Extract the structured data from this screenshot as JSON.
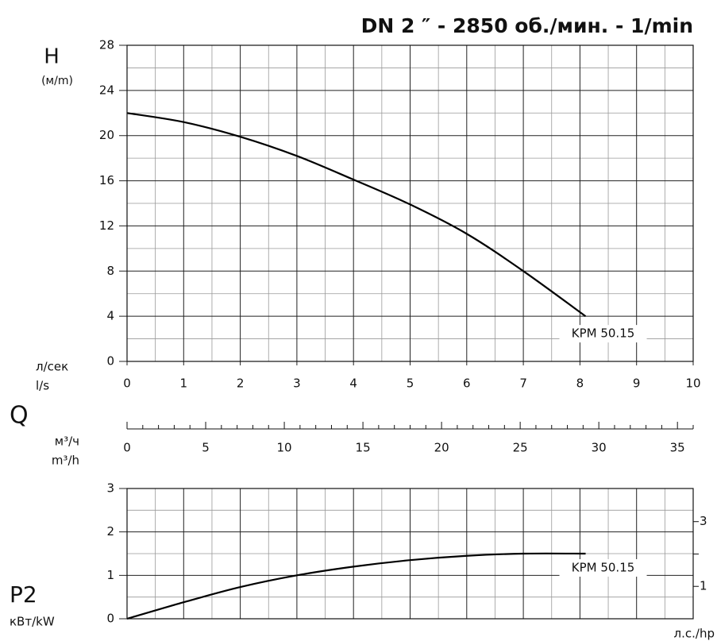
{
  "chart_data": [
    {
      "type": "line",
      "title": "DN 2 ″ - 2850 об./мин. - 1/min",
      "ylabel": "H",
      "yunit": "(м/m)",
      "xunit": [
        "л/сек",
        "l/s"
      ],
      "x": [
        0,
        1,
        2,
        3,
        4,
        5,
        6,
        7,
        8.1
      ],
      "series": [
        {
          "name": "KPM 50.15",
          "color": "#000000",
          "values": [
            22,
            21.2,
            19.9,
            18.2,
            16.1,
            13.9,
            11.3,
            8.0,
            4.0
          ]
        }
      ],
      "xlim": [
        0,
        10
      ],
      "xticks": [
        0,
        1,
        2,
        3,
        4,
        5,
        6,
        7,
        8,
        9,
        10
      ],
      "xminor": [
        0.5,
        1.5,
        2.5,
        3.5,
        4.5,
        5.5,
        6.5,
        7.5,
        8.5,
        9.5
      ],
      "ylim": [
        0,
        28
      ],
      "yticks": [
        0,
        4,
        8,
        12,
        16,
        20,
        24,
        28
      ],
      "yminor": [
        2,
        6,
        10,
        14,
        18,
        22,
        26
      ],
      "grid": true
    },
    {
      "type": "axis",
      "xlabel": "Q",
      "xunit": [
        "м³/ч",
        "m³/h"
      ],
      "xlim": [
        0,
        36
      ],
      "xticks": [
        0,
        5,
        10,
        15,
        20,
        25,
        30,
        35
      ],
      "xminor": [
        1,
        2,
        3,
        4,
        6,
        7,
        8,
        9,
        11,
        12,
        13,
        14,
        16,
        17,
        18,
        19,
        21,
        22,
        23,
        24,
        26,
        27,
        28,
        29,
        31,
        32,
        33,
        34,
        36
      ]
    },
    {
      "type": "line",
      "ylabel": "P2",
      "yunit": "кВт/kW",
      "y2unit": "л.с./hp",
      "x": [
        0,
        1,
        2,
        3,
        4,
        5,
        6,
        7,
        8.1
      ],
      "series": [
        {
          "name": "KPM 50.15",
          "color": "#000000",
          "values": [
            0,
            0.38,
            0.73,
            1.0,
            1.2,
            1.35,
            1.45,
            1.5,
            1.5
          ]
        }
      ],
      "xlim": [
        0,
        10
      ],
      "xticks": [
        0,
        1,
        2,
        3,
        4,
        5,
        6,
        7,
        8,
        9,
        10
      ],
      "xminor": [
        0.5,
        1.5,
        2.5,
        3.5,
        4.5,
        5.5,
        6.5,
        7.5,
        8.5,
        9.5
      ],
      "ylim": [
        0,
        3
      ],
      "yticks": [
        0,
        1,
        2,
        3
      ],
      "yminor": [
        0.5,
        1.5,
        2.5
      ],
      "y2lim": [
        0,
        4.023
      ],
      "y2ticks": [
        1,
        3
      ],
      "y2minor": [
        2
      ],
      "grid": true
    }
  ]
}
